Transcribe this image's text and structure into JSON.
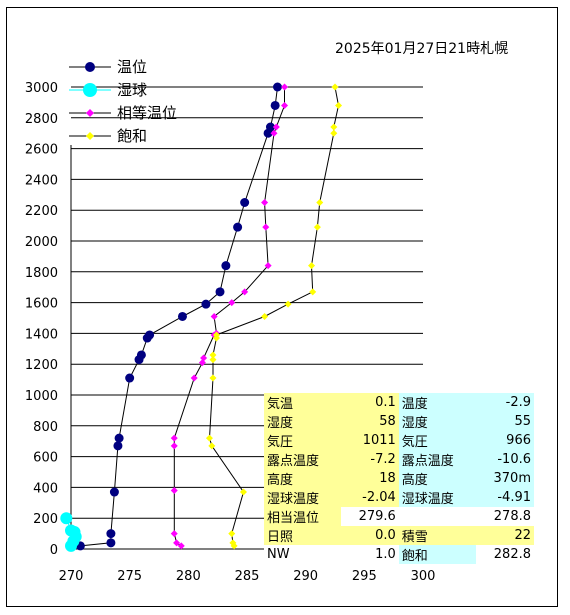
{
  "title": "2025年01月27日21時札幌",
  "legend": {
    "temperature": "温位",
    "wet_bulb": "湿球",
    "equivalent": "相等温位",
    "saturation": "飽和"
  },
  "colors": {
    "temperature": "#000080",
    "wet_bulb": "#00ffff",
    "equivalent": "#ff00ff",
    "saturation": "#ffff00"
  },
  "chart_data": {
    "type": "line",
    "title": "2025年01月27日21時札幌",
    "xlim": [
      270,
      300
    ],
    "ylim": [
      0,
      3000
    ],
    "x_ticks": [
      "270",
      "275",
      "280",
      "285",
      "290",
      "295",
      "300"
    ],
    "y_ticks": [
      "0",
      "200",
      "400",
      "600",
      "800",
      "1000",
      "1200",
      "1400",
      "1600",
      "1800",
      "2000",
      "2200",
      "2400",
      "2600",
      "2800",
      "3000"
    ],
    "grid": "horizontal",
    "legend_position": "top-left",
    "series": [
      {
        "name": "温位",
        "points": [
          [
            270.8,
            20
          ],
          [
            273.4,
            40
          ],
          [
            273.4,
            100
          ],
          [
            273.7,
            370
          ],
          [
            274.0,
            670
          ],
          [
            274.1,
            720
          ],
          [
            275.0,
            1110
          ],
          [
            275.8,
            1230
          ],
          [
            276.0,
            1260
          ],
          [
            276.5,
            1370
          ],
          [
            276.7,
            1390
          ],
          [
            279.5,
            1510
          ],
          [
            281.5,
            1590
          ],
          [
            282.7,
            1670
          ],
          [
            283.2,
            1840
          ],
          [
            284.2,
            2090
          ],
          [
            284.8,
            2250
          ],
          [
            286.8,
            2700
          ],
          [
            287.0,
            2740
          ],
          [
            287.4,
            2880
          ],
          [
            287.6,
            3000
          ]
        ]
      },
      {
        "name": "湿球",
        "points": [
          [
            270.0,
            20
          ],
          [
            270.2,
            50
          ],
          [
            270.4,
            80
          ],
          [
            270.3,
            110
          ],
          [
            270.0,
            120
          ],
          [
            269.6,
            200
          ]
        ]
      },
      {
        "name": "相等温位",
        "points": [
          [
            279.4,
            20
          ],
          [
            279.0,
            40
          ],
          [
            278.8,
            100
          ],
          [
            278.8,
            380
          ],
          [
            278.8,
            670
          ],
          [
            278.8,
            720
          ],
          [
            280.5,
            1110
          ],
          [
            281.2,
            1210
          ],
          [
            281.3,
            1240
          ],
          [
            282.2,
            1390
          ],
          [
            282.4,
            1400
          ],
          [
            282.2,
            1510
          ],
          [
            283.7,
            1600
          ],
          [
            284.8,
            1670
          ],
          [
            286.8,
            1840
          ],
          [
            286.6,
            2090
          ],
          [
            286.5,
            2250
          ],
          [
            287.3,
            2700
          ],
          [
            287.5,
            2740
          ],
          [
            288.2,
            2880
          ],
          [
            288.2,
            3000
          ]
        ]
      },
      {
        "name": "飽和",
        "points": [
          [
            283.9,
            20
          ],
          [
            283.8,
            40
          ],
          [
            283.7,
            100
          ],
          [
            284.7,
            370
          ],
          [
            282.0,
            670
          ],
          [
            281.8,
            720
          ],
          [
            282.1,
            1110
          ],
          [
            282.1,
            1230
          ],
          [
            282.1,
            1260
          ],
          [
            282.4,
            1370
          ],
          [
            282.4,
            1390
          ],
          [
            286.5,
            1510
          ],
          [
            288.5,
            1590
          ],
          [
            290.6,
            1670
          ],
          [
            290.5,
            1840
          ],
          [
            291.0,
            2090
          ],
          [
            291.2,
            2250
          ],
          [
            292.4,
            2700
          ],
          [
            292.4,
            2740
          ],
          [
            292.8,
            2880
          ],
          [
            292.5,
            3000
          ]
        ]
      }
    ]
  },
  "info": {
    "rows": [
      {
        "l1": "気温",
        "v1": "0.1",
        "l2": "温度",
        "v2": "-2.9"
      },
      {
        "l1": "湿度",
        "v1": "58",
        "l2": "湿度",
        "v2": "55"
      },
      {
        "l1": "気圧",
        "v1": "1011",
        "l2": "気圧",
        "v2": "966"
      },
      {
        "l1": "露点温度",
        "v1": "-7.2",
        "l2": "露点温度",
        "v2": "-10.6"
      },
      {
        "l1": "高度",
        "v1": "18",
        "l2": "高度",
        "v2": "370m"
      },
      {
        "l1": "湿球温度",
        "v1": "-2.04",
        "l2": "湿球温度",
        "v2": "-4.91"
      },
      {
        "l1": "相当温位",
        "v1": "279.6",
        "l2": "",
        "v2": "278.8"
      },
      {
        "l1": "日照",
        "v1": "0.0",
        "l2": "積雪",
        "v2": "22"
      },
      {
        "l1": "NW",
        "v1": "1.0",
        "l2": "飽和",
        "v2": "282.8"
      }
    ]
  }
}
